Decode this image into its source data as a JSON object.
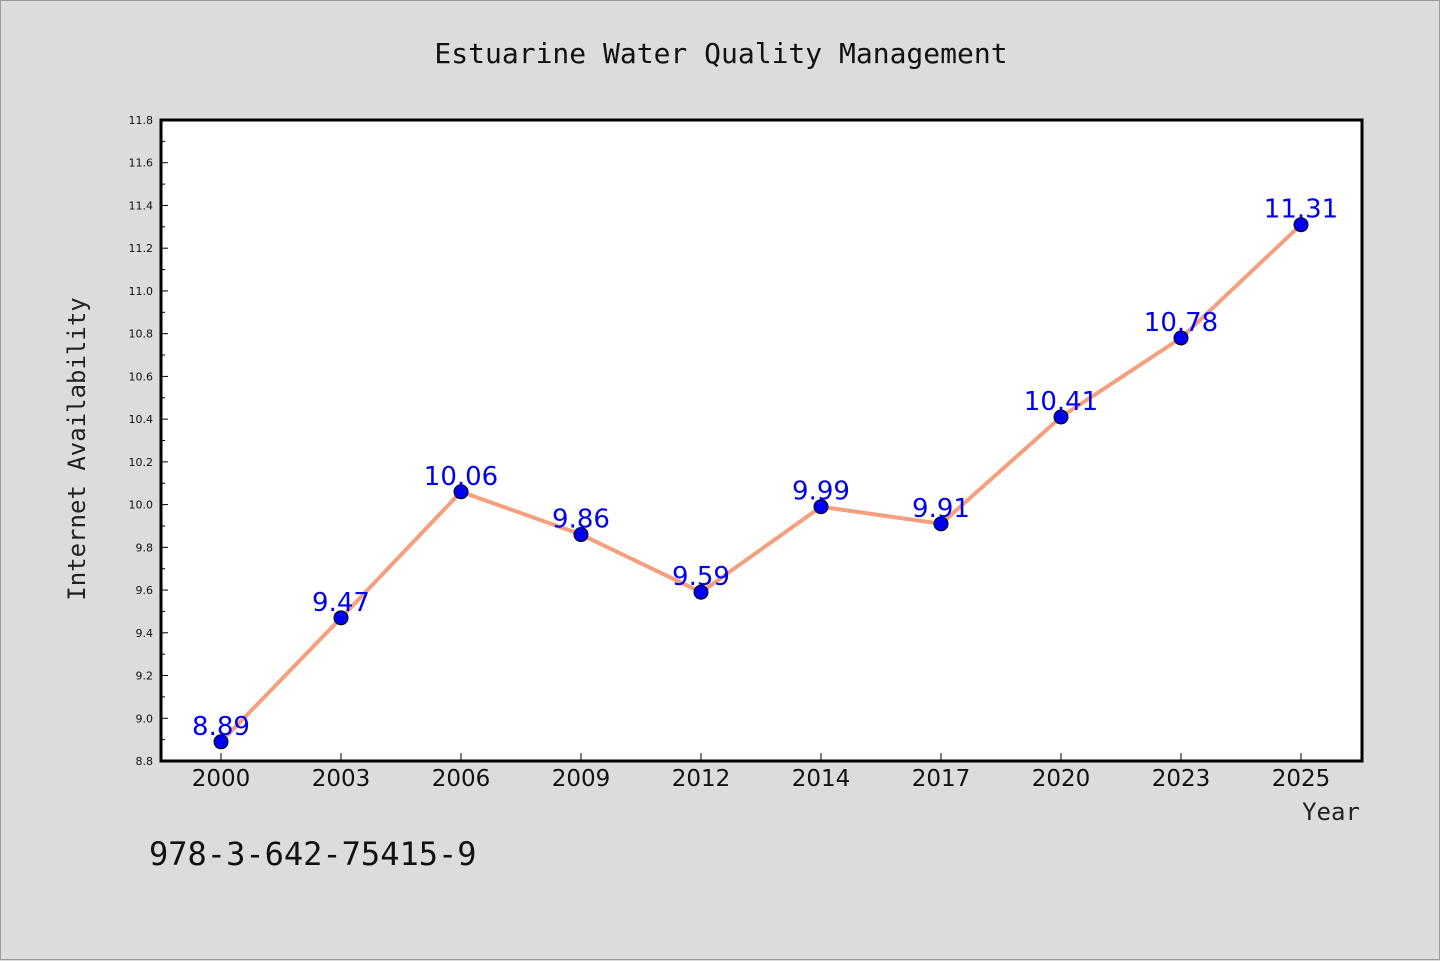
{
  "chart_data": {
    "type": "line",
    "title": "Estuarine Water Quality Management",
    "xlabel": "Year",
    "ylabel": "Internet Availability",
    "categories": [
      "2000",
      "2003",
      "2006",
      "2009",
      "2012",
      "2014",
      "2017",
      "2020",
      "2023",
      "2025"
    ],
    "series": [
      {
        "values": [
          8.89,
          9.47,
          10.06,
          9.86,
          9.59,
          9.99,
          9.91,
          10.41,
          10.78,
          11.31
        ]
      }
    ],
    "data_labels": [
      "8.89",
      "9.47",
      "10.06",
      "9.86",
      "9.59",
      "9.99",
      "9.91",
      "10.41",
      "10.78",
      "11.31"
    ],
    "ylim": [
      8.8,
      11.8
    ],
    "yticks": [
      "8.8",
      "9.0",
      "9.2",
      "9.4",
      "9.6",
      "9.8",
      "10.0",
      "10.2",
      "10.4",
      "10.6",
      "10.8",
      "11.0",
      "11.2",
      "11.4",
      "11.6",
      "11.8"
    ],
    "grid": false,
    "colors": {
      "line": "#f4a07e",
      "marker": "#0000ee",
      "label": "#0000ee",
      "background": "#dcdcdc",
      "plot_bg": "#ffffff"
    }
  },
  "footer": {
    "isbn": "978-3-642-75415-9"
  }
}
